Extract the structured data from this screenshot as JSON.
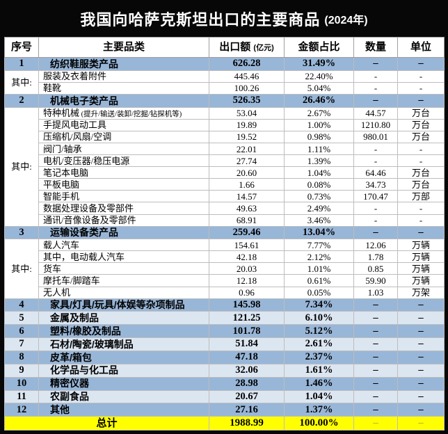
{
  "title": {
    "main": "我国向哈萨克斯坦出口的主要商品",
    "year": "(2024年)"
  },
  "header": {
    "seq": "序号",
    "name": "主要品类",
    "export": "出口额",
    "export_unit": "(亿元)",
    "share": "金额占比",
    "qty": "数量",
    "unit": "单位"
  },
  "colors": {
    "title_bg": "#070707",
    "title_text": "#ffffff",
    "category_row": "#98b6d8",
    "alt_category_row": "#dce6f1",
    "sub_row": "#ffffff",
    "total_row": "#ffff00",
    "grid": "#bdbdbd"
  },
  "chart_data": {
    "type": "table",
    "title": "我国向哈萨克斯坦出口的主要商品 (2024年)",
    "columns": [
      "序号",
      "主要品类",
      "出口额(亿元)",
      "金额占比",
      "数量",
      "单位"
    ],
    "rows": [
      {
        "seq": "1",
        "rowspan": 1,
        "name": "纺织鞋服类产品",
        "export": "626.28",
        "share": "31.49%",
        "qty": "–",
        "unit": "–",
        "style": "cat"
      },
      {
        "seq": "其中:",
        "rowspan": 2,
        "name": "服装及衣着附件",
        "export": "445.46",
        "share": "22.40%",
        "qty": "-",
        "unit": "-",
        "style": "sub"
      },
      {
        "name": "鞋靴",
        "export": "100.26",
        "share": "5.04%",
        "qty": "-",
        "unit": "-",
        "style": "sub"
      },
      {
        "seq": "2",
        "rowspan": 1,
        "name": "机械电子类产品",
        "export": "526.35",
        "share": "26.46%",
        "qty": "–",
        "unit": "–",
        "style": "cat"
      },
      {
        "seq": "其中:",
        "rowspan": 10,
        "name": "特种机械",
        "note": "(提升/输送/装卸/挖掘/钻探机等)",
        "export": "53.04",
        "share": "2.67%",
        "qty": "44.57",
        "unit": "万台",
        "style": "sub"
      },
      {
        "name": "手提风电动工具",
        "export": "19.89",
        "share": "1.00%",
        "qty": "1210.80",
        "unit": "万台",
        "style": "sub"
      },
      {
        "name": "压缩机/风扇/空调",
        "export": "19.52",
        "share": "0.98%",
        "qty": "980.01",
        "unit": "万台",
        "style": "sub"
      },
      {
        "name": "阀门/轴承",
        "export": "22.01",
        "share": "1.11%",
        "qty": "-",
        "unit": "-",
        "style": "sub"
      },
      {
        "name": "电机/变压器/稳压电源",
        "export": "27.74",
        "share": "1.39%",
        "qty": "-",
        "unit": "-",
        "style": "sub"
      },
      {
        "name": "笔记本电脑",
        "export": "20.60",
        "share": "1.04%",
        "qty": "64.46",
        "unit": "万台",
        "style": "sub"
      },
      {
        "name": "平板电脑",
        "export": "1.66",
        "share": "0.08%",
        "qty": "34.73",
        "unit": "万台",
        "style": "sub"
      },
      {
        "name": "智能手机",
        "export": "14.57",
        "share": "0.73%",
        "qty": "170.47",
        "unit": "万部",
        "style": "sub"
      },
      {
        "name": "数据处理设备及零部件",
        "export": "49.63",
        "share": "2.49%",
        "qty": "-",
        "unit": "-",
        "style": "sub"
      },
      {
        "name": "通讯/音像设备及零部件",
        "export": "68.91",
        "share": "3.46%",
        "qty": "-",
        "unit": "-",
        "style": "sub"
      },
      {
        "seq": "3",
        "rowspan": 1,
        "name": "运输设备类产品",
        "export": "259.46",
        "share": "13.04%",
        "qty": "–",
        "unit": "–",
        "style": "cat"
      },
      {
        "seq": "其中:",
        "rowspan": 5,
        "name": "载人汽车",
        "export": "154.61",
        "share": "7.77%",
        "qty": "12.06",
        "unit": "万辆",
        "style": "sub"
      },
      {
        "name": "其中，电动载人汽车",
        "export": "42.18",
        "share": "2.12%",
        "qty": "1.78",
        "unit": "万辆",
        "style": "sub"
      },
      {
        "name": "货车",
        "export": "20.03",
        "share": "1.01%",
        "qty": "0.85",
        "unit": "万辆",
        "style": "sub"
      },
      {
        "name": "摩托车/脚踏车",
        "export": "12.18",
        "share": "0.61%",
        "qty": "59.90",
        "unit": "万辆",
        "style": "sub"
      },
      {
        "name": "无人机",
        "export": "0.96",
        "share": "0.05%",
        "qty": "1.03",
        "unit": "万架",
        "style": "sub"
      },
      {
        "seq": "4",
        "rowspan": 1,
        "name": "家具/灯具/玩具/体娱等杂项制品",
        "export": "145.98",
        "share": "7.34%",
        "qty": "–",
        "unit": "–",
        "style": "cat"
      },
      {
        "seq": "5",
        "rowspan": 1,
        "name": "金属及制品",
        "export": "121.25",
        "share": "6.10%",
        "qty": "–",
        "unit": "–",
        "style": "cat-light"
      },
      {
        "seq": "6",
        "rowspan": 1,
        "name": "塑料/橡胶及制品",
        "export": "101.78",
        "share": "5.12%",
        "qty": "–",
        "unit": "–",
        "style": "cat"
      },
      {
        "seq": "7",
        "rowspan": 1,
        "name": "石材/陶瓷/玻璃制品",
        "export": "51.84",
        "share": "2.61%",
        "qty": "–",
        "unit": "–",
        "style": "cat-light"
      },
      {
        "seq": "8",
        "rowspan": 1,
        "name": "皮革/箱包",
        "export": "47.18",
        "share": "2.37%",
        "qty": "–",
        "unit": "–",
        "style": "cat"
      },
      {
        "seq": "9",
        "rowspan": 1,
        "name": "化学品与化工品",
        "export": "32.06",
        "share": "1.61%",
        "qty": "–",
        "unit": "–",
        "style": "cat-light"
      },
      {
        "seq": "10",
        "rowspan": 1,
        "name": "精密仪器",
        "export": "28.98",
        "share": "1.46%",
        "qty": "–",
        "unit": "–",
        "style": "cat"
      },
      {
        "seq": "11",
        "rowspan": 1,
        "name": "农副食品",
        "export": "20.67",
        "share": "1.04%",
        "qty": "–",
        "unit": "–",
        "style": "cat-light"
      },
      {
        "seq": "12",
        "rowspan": 1,
        "name": "其他",
        "export": "27.16",
        "share": "1.37%",
        "qty": "–",
        "unit": "–",
        "style": "cat"
      },
      {
        "name": "总计",
        "export": "1988.99",
        "share": "100.00%",
        "qty": "–",
        "unit": "–",
        "style": "total"
      }
    ]
  }
}
